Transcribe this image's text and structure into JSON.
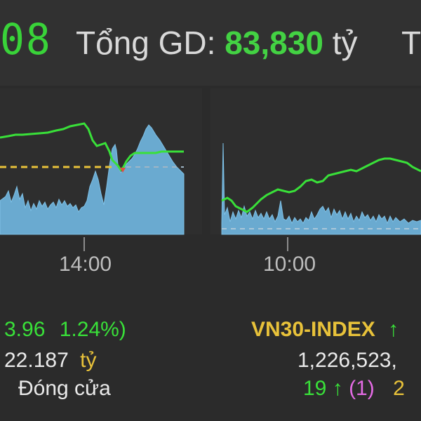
{
  "header": {
    "clock_fragment": "08",
    "total_label": "Tổng GD:",
    "total_value": "83,830",
    "total_unit": "tỷ",
    "cutoff_next": "T"
  },
  "left_chart": {
    "time_label": "14:00",
    "change_text": "3.96",
    "percent_text": "1.24%)",
    "volume_text": "22.187",
    "volume_unit": "tỷ",
    "status": "Đóng cửa"
  },
  "right_chart": {
    "time_label": "10:00",
    "index_name": "VN30-INDEX",
    "index_arrow": "↑",
    "volume_text": "1,226,523,",
    "up_count": "19",
    "up_arrow": "↑",
    "ceiling_count": "(1)",
    "next_count": "2"
  },
  "colors": {
    "green": "#39e039",
    "yellow_dashed": "#e8c23a",
    "volume_fill": "#6aaad0",
    "magenta": "#e46be4"
  }
}
